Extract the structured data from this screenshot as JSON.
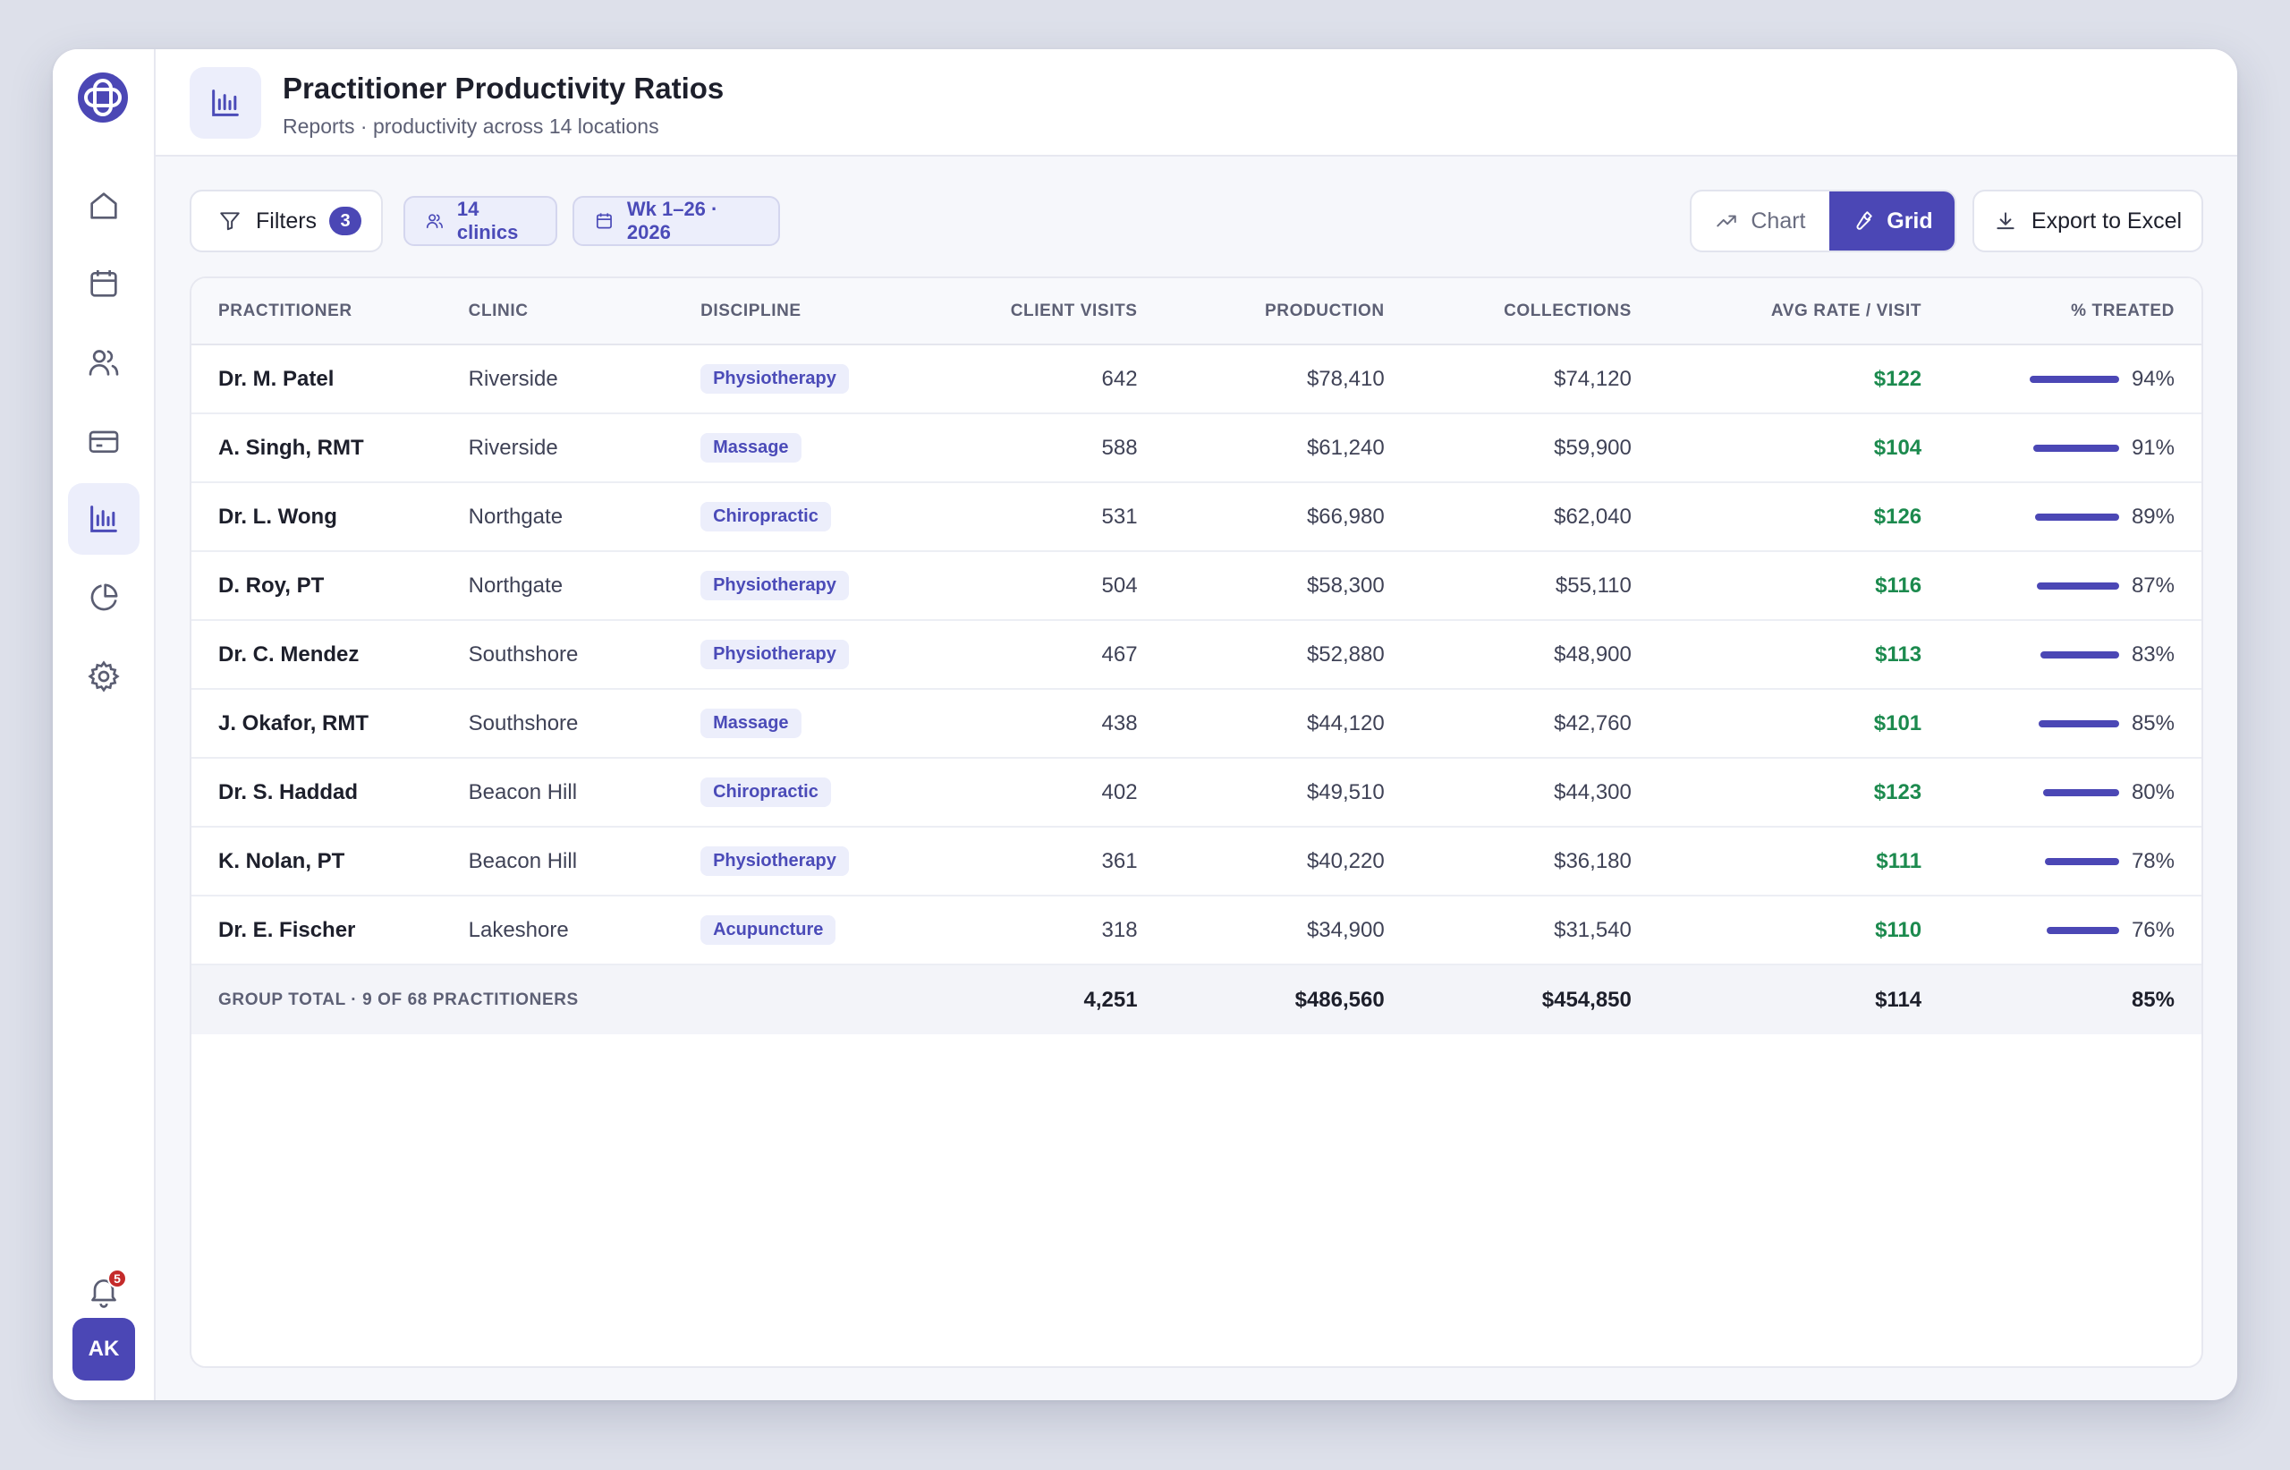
{
  "header": {
    "title": "Practitioner Productivity Ratios",
    "subtitle": "Reports · productivity across 14 locations"
  },
  "sidebar": {
    "items": [
      "home-icon",
      "calendar-icon",
      "users-icon",
      "billing-card-icon",
      "bar-chart-icon",
      "pie-chart-icon",
      "gear-icon"
    ],
    "active": "bar-chart-icon",
    "notifications_count": "5",
    "avatar_initials": "AK"
  },
  "toolbar": {
    "filters_label": "Filters",
    "filters_count": "3",
    "clinics_chip": "14 clinics",
    "weeks_chip": "Wk 1–26 · 2026",
    "chart_label": "Chart",
    "grid_label": "Grid",
    "export_label": "Export to Excel"
  },
  "table": {
    "columns": [
      "Practitioner",
      "Clinic",
      "Discipline",
      "Client Visits",
      "Production",
      "Collections",
      "Avg Rate / Visit",
      "% Treated"
    ],
    "rows": [
      {
        "practitioner": "Dr. M. Patel",
        "clinic": "Riverside",
        "discipline": "Physiotherapy",
        "visits": "642",
        "production": "$78,410",
        "collections": "$74,120",
        "rate": "$122",
        "treated": "94%",
        "treated_value": 94
      },
      {
        "practitioner": "A. Singh, RMT",
        "clinic": "Riverside",
        "discipline": "Massage",
        "visits": "588",
        "production": "$61,240",
        "collections": "$59,900",
        "rate": "$104",
        "treated": "91%",
        "treated_value": 91
      },
      {
        "practitioner": "Dr. L. Wong",
        "clinic": "Northgate",
        "discipline": "Chiropractic",
        "visits": "531",
        "production": "$66,980",
        "collections": "$62,040",
        "rate": "$126",
        "treated": "89%",
        "treated_value": 89
      },
      {
        "practitioner": "D. Roy, PT",
        "clinic": "Northgate",
        "discipline": "Physiotherapy",
        "visits": "504",
        "production": "$58,300",
        "collections": "$55,110",
        "rate": "$116",
        "treated": "87%",
        "treated_value": 87
      },
      {
        "practitioner": "Dr. C. Mendez",
        "clinic": "Southshore",
        "discipline": "Physiotherapy",
        "visits": "467",
        "production": "$52,880",
        "collections": "$48,900",
        "rate": "$113",
        "treated": "83%",
        "treated_value": 83
      },
      {
        "practitioner": "J. Okafor, RMT",
        "clinic": "Southshore",
        "discipline": "Massage",
        "visits": "438",
        "production": "$44,120",
        "collections": "$42,760",
        "rate": "$101",
        "treated": "85%",
        "treated_value": 85
      },
      {
        "practitioner": "Dr. S. Haddad",
        "clinic": "Beacon Hill",
        "discipline": "Chiropractic",
        "visits": "402",
        "production": "$49,510",
        "collections": "$44,300",
        "rate": "$123",
        "treated": "80%",
        "treated_value": 80
      },
      {
        "practitioner": "K. Nolan, PT",
        "clinic": "Beacon Hill",
        "discipline": "Physiotherapy",
        "visits": "361",
        "production": "$40,220",
        "collections": "$36,180",
        "rate": "$111",
        "treated": "78%",
        "treated_value": 78
      },
      {
        "practitioner": "Dr. E. Fischer",
        "clinic": "Lakeshore",
        "discipline": "Acupuncture",
        "visits": "318",
        "production": "$34,900",
        "collections": "$31,540",
        "rate": "$110",
        "treated": "76%",
        "treated_value": 76
      }
    ],
    "total": {
      "label": "Group total · 9 of 68 practitioners",
      "visits": "4,251",
      "production": "$486,560",
      "collections": "$454,850",
      "rate": "$114",
      "treated": "85%"
    }
  },
  "colors": {
    "accent": "#4b47b5",
    "positive": "#1c8a4e",
    "badge": "#c42a2a"
  }
}
